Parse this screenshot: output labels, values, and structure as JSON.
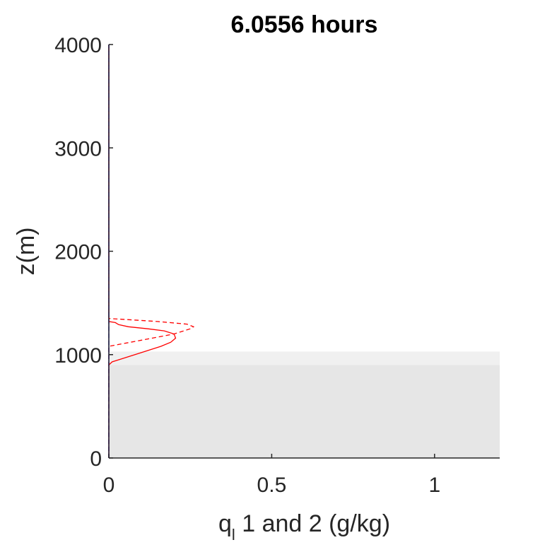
{
  "chart_data": {
    "type": "line",
    "title": "6.0556 hours",
    "ylabel": "z(m)",
    "xlabel": {
      "base": "q",
      "subscript": "l",
      "rest": " 1 and 2 (g/kg)"
    },
    "xlim": [
      0,
      1.2
    ],
    "ylim": [
      0,
      4000
    ],
    "xticks": [
      0,
      0.5,
      1
    ],
    "xtick_labels": [
      "0",
      "0.5",
      "1"
    ],
    "yticks": [
      0,
      1000,
      2000,
      3000,
      4000
    ],
    "ytick_labels": [
      "0",
      "1000",
      "2000",
      "3000",
      "4000"
    ],
    "grid": false,
    "shaded_regions": [
      {
        "z_min": 0,
        "z_max": 900,
        "color": "#e6e6e6"
      },
      {
        "z_min": 900,
        "z_max": 1030,
        "color": "#f0f0f0"
      }
    ],
    "series": [
      {
        "style": "solid",
        "color": "#ff0000",
        "points": [
          [
            0,
            0
          ],
          [
            0,
            900
          ],
          [
            0.01,
            930
          ],
          [
            0.04,
            960
          ],
          [
            0.08,
            1000
          ],
          [
            0.12,
            1040
          ],
          [
            0.16,
            1080
          ],
          [
            0.19,
            1120
          ],
          [
            0.205,
            1160
          ],
          [
            0.2,
            1200
          ],
          [
            0.17,
            1230
          ],
          [
            0.12,
            1250
          ],
          [
            0.06,
            1270
          ],
          [
            0.03,
            1290
          ],
          [
            0.02,
            1310
          ],
          [
            0,
            1320
          ],
          [
            0,
            4000
          ]
        ]
      },
      {
        "style": "dashed",
        "color": "#ff0000",
        "points": [
          [
            0,
            0
          ],
          [
            0,
            1080
          ],
          [
            0.1,
            1140
          ],
          [
            0.2,
            1200
          ],
          [
            0.25,
            1250
          ],
          [
            0.26,
            1270
          ],
          [
            0.24,
            1295
          ],
          [
            0.15,
            1320
          ],
          [
            0.05,
            1340
          ],
          [
            0,
            1350
          ],
          [
            0,
            4000
          ]
        ]
      },
      {
        "style": "solid",
        "color": "#0000ff",
        "points": [
          [
            0,
            0
          ],
          [
            0,
            4000
          ]
        ]
      },
      {
        "style": "dashed",
        "color": "#0000ff",
        "points": [
          [
            0,
            0
          ],
          [
            0,
            4000
          ]
        ]
      }
    ]
  }
}
